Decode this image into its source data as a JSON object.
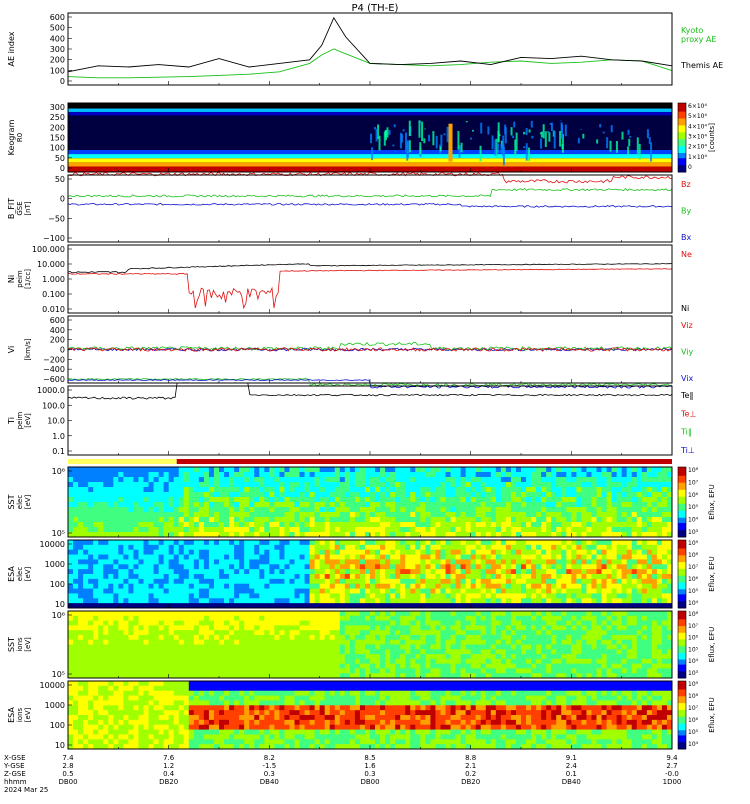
{
  "title": "P4 (TH-E)",
  "time_axis": {
    "labels": [
      "7.4",
      "7.6",
      "8.2",
      "8.5",
      "8.8",
      "9.1",
      "9.4"
    ],
    "rows": [
      {
        "label": "X-GSE",
        "values": [
          "7.4",
          "7.6",
          "8.2",
          "8.5",
          "8.8",
          "9.1",
          "9.4"
        ]
      },
      {
        "label": "Y-GSE",
        "values": [
          "2.8",
          "1.2",
          "-1.5",
          "1.6",
          "2.1",
          "2.4",
          "2.7"
        ]
      },
      {
        "label": "Z-GSE",
        "values": [
          "0.5",
          "0.4",
          "0.3",
          "0.3",
          "0.2",
          "0.1",
          "-0.0"
        ]
      },
      {
        "label": "hhmm",
        "values": [
          "DB00",
          "DB20",
          "DB40",
          "DB00",
          "DB20",
          "DB40",
          "1D00"
        ]
      }
    ],
    "date": "2024 Mar 25"
  },
  "panels": {
    "ae": {
      "ylabel": "AE index",
      "yticks": [
        "600",
        "500",
        "400",
        "300",
        "200",
        "100",
        "0"
      ],
      "legend": [
        {
          "text": "Kyoto proxy AE",
          "color": "#18c018"
        },
        {
          "text": "Themis AE",
          "color": "#000000"
        }
      ]
    },
    "keogram": {
      "ylabel": "Keogram",
      "ylabel2": "R0",
      "yticks": [
        "300",
        "250",
        "200",
        "150",
        "100",
        "50",
        "0"
      ],
      "cbar_label": "[counts]",
      "cbar_ticks": [
        "6×10⁴",
        "5×10⁴",
        "4×10⁴",
        "3×10⁴",
        "2×10⁴",
        "1×10⁴",
        "0"
      ]
    },
    "b": {
      "ylabel": "B_FIT",
      "ylabel2": "GSE",
      "unit": "[nT]",
      "yticks": [
        "50",
        "0",
        "−50",
        "−100"
      ],
      "legend": [
        {
          "text": "Bz",
          "color": "#e01010"
        },
        {
          "text": "By",
          "color": "#18c018"
        },
        {
          "text": "Bx",
          "color": "#1010d0"
        }
      ]
    },
    "n": {
      "ylabel": "Ni",
      "ylabel2": "peim",
      "unit": "[1/cc]",
      "yticks": [
        "100.000",
        "10.000",
        "1.000",
        "0.100",
        "0.010"
      ],
      "legend": [
        {
          "text": "Ne",
          "color": "#e01010"
        },
        {
          "text": "Ni",
          "color": "#000000"
        }
      ]
    },
    "v": {
      "ylabel": "Vi",
      "unit": "[km/s]",
      "yticks": [
        "600",
        "400",
        "200",
        "0",
        "−200",
        "−400",
        "−600"
      ],
      "legend": [
        {
          "text": "Viz",
          "color": "#e01010"
        },
        {
          "text": "Viy",
          "color": "#18c018"
        },
        {
          "text": "Vix",
          "color": "#1010d0"
        }
      ]
    },
    "t": {
      "ylabel": "Ti",
      "ylabel2": "peim",
      "unit": "[eV]",
      "yticks": [
        "1000.0",
        "100.0",
        "10.0",
        "1.0",
        "0.1"
      ],
      "legend": [
        {
          "text": "Te‖",
          "color": "#000000"
        },
        {
          "text": "Te⊥",
          "color": "#e01010"
        },
        {
          "text": "Ti‖",
          "color": "#18c018"
        },
        {
          "text": "Ti⊥",
          "color": "#1010d0"
        }
      ]
    },
    "sst_e": {
      "ylabel": "SST",
      "ylabel2": "elec",
      "unit": "[eV]",
      "yticks": [
        "10⁶",
        "10⁵"
      ],
      "cbar_label": "Eflux, EFU",
      "cbar_ticks": [
        "10⁸",
        "10⁷",
        "10⁶",
        "10⁵",
        "10⁴",
        "10³"
      ]
    },
    "esa_e": {
      "ylabel": "ESA",
      "ylabel2": "elec",
      "unit": "[eV]",
      "yticks": [
        "10000",
        "1000",
        "100",
        "10"
      ],
      "cbar_label": "Eflux, EFU",
      "cbar_ticks": [
        "10⁹",
        "10⁸",
        "10⁷",
        "10⁶",
        "10⁵",
        "10⁴"
      ]
    },
    "sst_i": {
      "ylabel": "SST",
      "ylabel2": "ions",
      "unit": "[eV]",
      "yticks": [
        "10⁶",
        "10⁵"
      ],
      "cbar_label": "Eflux, EFU",
      "cbar_ticks": [
        "10⁸",
        "10⁷",
        "10⁶",
        "10⁵",
        "10⁴",
        "10³"
      ]
    },
    "esa_i": {
      "ylabel": "ESA",
      "ylabel2": "ions",
      "unit": "[eV]",
      "yticks": [
        "10000",
        "1000",
        "100",
        "10"
      ],
      "cbar_label": "Eflux, EFU",
      "cbar_ticks": [
        "10⁹",
        "10⁸",
        "10⁷",
        "10⁶",
        "10⁵",
        "10⁴"
      ]
    }
  },
  "chart_data": [
    {
      "type": "line",
      "title": "P4 (TH-E)",
      "ylabel": "AE index",
      "ylim": [
        0,
        600
      ],
      "x": [
        0,
        0.05,
        0.1,
        0.15,
        0.2,
        0.25,
        0.3,
        0.35,
        0.4,
        0.42,
        0.44,
        0.46,
        0.5,
        0.55,
        0.6,
        0.65,
        0.7,
        0.75,
        0.8,
        0.85,
        0.9,
        0.95,
        1.0
      ],
      "series": [
        {
          "name": "Themis AE",
          "values": [
            110,
            160,
            150,
            170,
            150,
            220,
            150,
            180,
            210,
            330,
            560,
            400,
            180,
            170,
            180,
            200,
            170,
            230,
            220,
            240,
            210,
            200,
            160
          ]
        },
        {
          "name": "Kyoto proxy AE",
          "values": [
            70,
            60,
            60,
            65,
            70,
            80,
            90,
            110,
            180,
            250,
            300,
            260,
            180,
            170,
            160,
            170,
            190,
            200,
            180,
            190,
            210,
            200,
            120
          ]
        }
      ]
    },
    {
      "type": "heatmap",
      "ylabel": "Keogram",
      "ylim": [
        0,
        300
      ]
    },
    {
      "type": "line",
      "ylabel": "B_FIT GSE [nT]",
      "ylim": [
        -100,
        60
      ],
      "series": [
        {
          "name": "Bz"
        },
        {
          "name": "By"
        },
        {
          "name": "Bx"
        }
      ]
    },
    {
      "type": "line",
      "ylabel": "Ni peim [1/cc]",
      "ylim": [
        0.01,
        100
      ],
      "series": [
        {
          "name": "Ne"
        },
        {
          "name": "Ni"
        }
      ]
    },
    {
      "type": "line",
      "ylabel": "Vi [km/s]",
      "ylim": [
        -600,
        600
      ],
      "series": [
        {
          "name": "Viz"
        },
        {
          "name": "Viy"
        },
        {
          "name": "Vix"
        }
      ]
    },
    {
      "type": "line",
      "ylabel": "Ti peim [eV]",
      "ylim": [
        0.1,
        1000
      ],
      "series": [
        {
          "name": "Te‖"
        },
        {
          "name": "Te⊥"
        },
        {
          "name": "Ti‖"
        },
        {
          "name": "Ti⊥"
        }
      ]
    },
    {
      "type": "heatmap",
      "ylabel": "SST elec [eV]"
    },
    {
      "type": "heatmap",
      "ylabel": "ESA elec [eV]"
    },
    {
      "type": "heatmap",
      "ylabel": "SST ions [eV]"
    },
    {
      "type": "heatmap",
      "ylabel": "ESA ions [eV]"
    }
  ]
}
